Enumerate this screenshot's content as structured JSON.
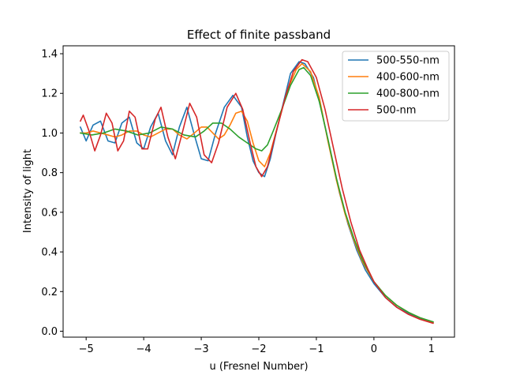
{
  "chart_data": {
    "type": "line",
    "title": "Effect of finite passband",
    "xlabel": "u (Fresnel Number)",
    "ylabel": "Intensity of light",
    "xlim": [
      -5.4,
      1.4
    ],
    "ylim": [
      -0.03,
      1.44
    ],
    "x_ticks": [
      -5,
      -4,
      -3,
      -2,
      -1,
      0,
      1
    ],
    "x_tick_labels": [
      "−5",
      "−4",
      "−3",
      "−2",
      "−1",
      "0",
      "1"
    ],
    "y_ticks": [
      0.0,
      0.2,
      0.4,
      0.6,
      0.8,
      1.0,
      1.2,
      1.4
    ],
    "y_tick_labels": [
      "0.0",
      "0.2",
      "0.4",
      "0.6",
      "0.8",
      "1.0",
      "1.2",
      "1.4"
    ],
    "grid": false,
    "legend_position": "top-right",
    "series": [
      {
        "name": "500-550-nm",
        "color": "#1f77b4",
        "points": [
          [
            -5.1,
            1.03
          ],
          [
            -5.0,
            0.96
          ],
          [
            -4.88,
            1.04
          ],
          [
            -4.75,
            1.06
          ],
          [
            -4.62,
            0.96
          ],
          [
            -4.5,
            0.95
          ],
          [
            -4.38,
            1.05
          ],
          [
            -4.25,
            1.08
          ],
          [
            -4.12,
            0.95
          ],
          [
            -4.0,
            0.92
          ],
          [
            -3.88,
            1.03
          ],
          [
            -3.75,
            1.1
          ],
          [
            -3.62,
            0.96
          ],
          [
            -3.5,
            0.89
          ],
          [
            -3.38,
            1.03
          ],
          [
            -3.25,
            1.13
          ],
          [
            -3.12,
            0.99
          ],
          [
            -3.0,
            0.87
          ],
          [
            -2.88,
            0.86
          ],
          [
            -2.75,
            1.0
          ],
          [
            -2.6,
            1.13
          ],
          [
            -2.45,
            1.19
          ],
          [
            -2.3,
            1.13
          ],
          [
            -2.2,
            0.98
          ],
          [
            -2.1,
            0.86
          ],
          [
            -2.0,
            0.8
          ],
          [
            -1.9,
            0.78
          ],
          [
            -1.8,
            0.87
          ],
          [
            -1.7,
            1.0
          ],
          [
            -1.55,
            1.18
          ],
          [
            -1.45,
            1.3
          ],
          [
            -1.3,
            1.36
          ],
          [
            -1.2,
            1.35
          ],
          [
            -1.05,
            1.28
          ],
          [
            -0.9,
            1.1
          ],
          [
            -0.75,
            0.9
          ],
          [
            -0.6,
            0.7
          ],
          [
            -0.45,
            0.54
          ],
          [
            -0.3,
            0.41
          ],
          [
            -0.15,
            0.31
          ],
          [
            0.0,
            0.24
          ],
          [
            0.2,
            0.17
          ],
          [
            0.4,
            0.12
          ],
          [
            0.6,
            0.09
          ],
          [
            0.8,
            0.065
          ],
          [
            1.03,
            0.045
          ]
        ]
      },
      {
        "name": "400-600-nm",
        "color": "#ff7f0e",
        "points": [
          [
            -5.1,
            1.0
          ],
          [
            -5.0,
            1.0
          ],
          [
            -4.88,
            1.01
          ],
          [
            -4.75,
            1.0
          ],
          [
            -4.62,
            0.99
          ],
          [
            -4.5,
            0.98
          ],
          [
            -4.38,
            0.99
          ],
          [
            -4.25,
            1.01
          ],
          [
            -4.12,
            1.01
          ],
          [
            -4.0,
            0.99
          ],
          [
            -3.88,
            0.98
          ],
          [
            -3.75,
            1.0
          ],
          [
            -3.62,
            1.02
          ],
          [
            -3.5,
            1.02
          ],
          [
            -3.38,
            0.99
          ],
          [
            -3.25,
            0.97
          ],
          [
            -3.12,
            1.0
          ],
          [
            -3.0,
            1.03
          ],
          [
            -2.9,
            1.03
          ],
          [
            -2.8,
            1.0
          ],
          [
            -2.7,
            0.97
          ],
          [
            -2.6,
            0.99
          ],
          [
            -2.5,
            1.04
          ],
          [
            -2.4,
            1.1
          ],
          [
            -2.3,
            1.11
          ],
          [
            -2.2,
            1.06
          ],
          [
            -2.1,
            0.95
          ],
          [
            -2.0,
            0.86
          ],
          [
            -1.9,
            0.83
          ],
          [
            -1.8,
            0.9
          ],
          [
            -1.65,
            1.06
          ],
          [
            -1.5,
            1.22
          ],
          [
            -1.35,
            1.32
          ],
          [
            -1.25,
            1.35
          ],
          [
            -1.1,
            1.31
          ],
          [
            -0.95,
            1.18
          ],
          [
            -0.8,
            0.96
          ],
          [
            -0.65,
            0.76
          ],
          [
            -0.5,
            0.59
          ],
          [
            -0.35,
            0.46
          ],
          [
            -0.2,
            0.35
          ],
          [
            0.0,
            0.25
          ],
          [
            0.2,
            0.18
          ],
          [
            0.4,
            0.13
          ],
          [
            0.6,
            0.095
          ],
          [
            0.8,
            0.068
          ],
          [
            1.03,
            0.045
          ]
        ]
      },
      {
        "name": "400-800-nm",
        "color": "#2ca02c",
        "points": [
          [
            -5.1,
            1.0
          ],
          [
            -4.9,
            0.99
          ],
          [
            -4.7,
            1.0
          ],
          [
            -4.5,
            1.02
          ],
          [
            -4.3,
            1.01
          ],
          [
            -4.1,
            0.99
          ],
          [
            -3.9,
            1.0
          ],
          [
            -3.7,
            1.03
          ],
          [
            -3.5,
            1.02
          ],
          [
            -3.3,
            0.99
          ],
          [
            -3.1,
            0.98
          ],
          [
            -2.95,
            1.01
          ],
          [
            -2.8,
            1.05
          ],
          [
            -2.65,
            1.05
          ],
          [
            -2.5,
            1.02
          ],
          [
            -2.35,
            0.98
          ],
          [
            -2.2,
            0.95
          ],
          [
            -2.05,
            0.92
          ],
          [
            -1.95,
            0.91
          ],
          [
            -1.85,
            0.94
          ],
          [
            -1.75,
            1.01
          ],
          [
            -1.6,
            1.12
          ],
          [
            -1.45,
            1.24
          ],
          [
            -1.3,
            1.32
          ],
          [
            -1.22,
            1.33
          ],
          [
            -1.1,
            1.29
          ],
          [
            -0.95,
            1.16
          ],
          [
            -0.8,
            0.97
          ],
          [
            -0.65,
            0.77
          ],
          [
            -0.5,
            0.6
          ],
          [
            -0.35,
            0.47
          ],
          [
            -0.2,
            0.36
          ],
          [
            0.0,
            0.25
          ],
          [
            0.2,
            0.18
          ],
          [
            0.4,
            0.13
          ],
          [
            0.6,
            0.095
          ],
          [
            0.8,
            0.068
          ],
          [
            1.03,
            0.047
          ]
        ]
      },
      {
        "name": "500-nm",
        "color": "#d62728",
        "points": [
          [
            -5.1,
            1.06
          ],
          [
            -5.05,
            1.09
          ],
          [
            -4.95,
            1.01
          ],
          [
            -4.85,
            0.91
          ],
          [
            -4.75,
            0.99
          ],
          [
            -4.65,
            1.1
          ],
          [
            -4.55,
            1.05
          ],
          [
            -4.45,
            0.91
          ],
          [
            -4.35,
            0.96
          ],
          [
            -4.25,
            1.11
          ],
          [
            -4.15,
            1.08
          ],
          [
            -4.03,
            0.92
          ],
          [
            -3.93,
            0.92
          ],
          [
            -3.8,
            1.07
          ],
          [
            -3.7,
            1.13
          ],
          [
            -3.58,
            0.98
          ],
          [
            -3.45,
            0.87
          ],
          [
            -3.33,
            1.0
          ],
          [
            -3.2,
            1.15
          ],
          [
            -3.08,
            1.08
          ],
          [
            -2.95,
            0.89
          ],
          [
            -2.82,
            0.85
          ],
          [
            -2.7,
            0.95
          ],
          [
            -2.55,
            1.13
          ],
          [
            -2.4,
            1.2
          ],
          [
            -2.28,
            1.12
          ],
          [
            -2.15,
            0.95
          ],
          [
            -2.05,
            0.83
          ],
          [
            -1.95,
            0.78
          ],
          [
            -1.85,
            0.83
          ],
          [
            -1.72,
            0.98
          ],
          [
            -1.55,
            1.17
          ],
          [
            -1.4,
            1.31
          ],
          [
            -1.25,
            1.37
          ],
          [
            -1.15,
            1.36
          ],
          [
            -1.0,
            1.28
          ],
          [
            -0.85,
            1.12
          ],
          [
            -0.7,
            0.92
          ],
          [
            -0.55,
            0.72
          ],
          [
            -0.4,
            0.55
          ],
          [
            -0.25,
            0.41
          ],
          [
            -0.1,
            0.31
          ],
          [
            0.0,
            0.25
          ],
          [
            0.2,
            0.17
          ],
          [
            0.4,
            0.12
          ],
          [
            0.6,
            0.085
          ],
          [
            0.8,
            0.06
          ],
          [
            1.03,
            0.04
          ]
        ]
      }
    ]
  }
}
